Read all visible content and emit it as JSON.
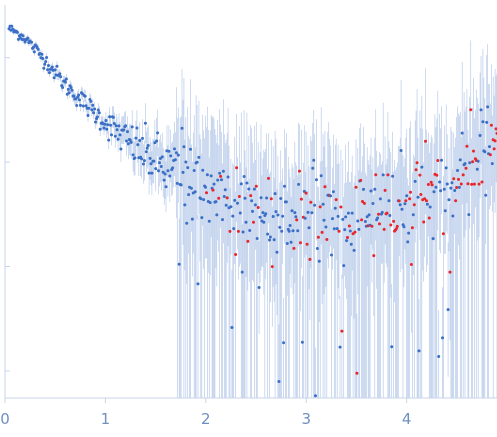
{
  "chart_data": {
    "type": "scatter",
    "title": "",
    "xlabel": "",
    "ylabel": "",
    "xlim": [
      0,
      4.9
    ],
    "x_ticks": [
      {
        "value": 0,
        "label": "0"
      },
      {
        "value": 1,
        "label": "1"
      },
      {
        "value": 2,
        "label": "2"
      },
      {
        "value": 3,
        "label": "3"
      },
      {
        "value": 4,
        "label": "4"
      }
    ],
    "y_scale": "log",
    "ylim": [
      0.00055,
      3.2
    ],
    "y_gridlines": [
      1.0,
      0.1,
      0.01,
      0.001
    ],
    "y_tick_labels_shown": false,
    "grid": false,
    "legend": "none",
    "colors": {
      "points_positive": "#3b6fc6",
      "points_negative": "#e8262b",
      "error_bars": "#b8cbea",
      "axis": "#c9d4e8",
      "tick_labels": "#6f8fbf"
    },
    "series": [
      {
        "kind": "scattering_profile",
        "x_start": 0.04,
        "x_end": 4.9,
        "n_points": 520,
        "trend": [
          [
            0.05,
            1.9
          ],
          [
            0.2,
            1.55
          ],
          [
            0.4,
            0.95
          ],
          [
            0.6,
            0.55
          ],
          [
            0.8,
            0.36
          ],
          [
            1.0,
            0.24
          ],
          [
            1.2,
            0.165
          ],
          [
            1.4,
            0.12
          ],
          [
            1.6,
            0.088
          ],
          [
            1.8,
            0.068
          ],
          [
            2.0,
            0.052
          ],
          [
            2.5,
            0.03
          ],
          [
            3.0,
            0.027
          ],
          [
            3.5,
            0.03
          ],
          [
            4.0,
            0.04
          ],
          [
            4.5,
            0.065
          ],
          [
            4.9,
            0.16
          ]
        ]
      }
    ]
  }
}
